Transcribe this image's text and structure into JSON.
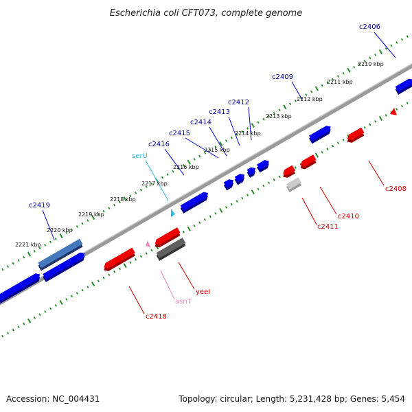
{
  "title": "Escherichia coli CFT073, complete genome",
  "footer": {
    "accession": "Accession: NC_004431",
    "topology": "Topology: circular; Length: 5,231,428 bp; Genes: 5,454"
  },
  "colors": {
    "forward_gene": "#0000ee",
    "reverse_gene": "#ee0000",
    "tick": "#228b22",
    "backbone": "#8a8a8a",
    "label_forward": "#0000aa",
    "label_reverse": "#cc0000",
    "trna": "#33bbee",
    "rna_pink": "#ee88bb",
    "pseudo": "#555555"
  },
  "scale_labels": [
    {
      "kbp": 2210,
      "text": "2210 kbp"
    },
    {
      "kbp": 2211,
      "text": "2211 kbp"
    },
    {
      "kbp": 2212,
      "text": "2212 kbp"
    },
    {
      "kbp": 2213,
      "text": "2213 kbp"
    },
    {
      "kbp": 2214,
      "text": "2214 kbp"
    },
    {
      "kbp": 2215,
      "text": "2215 kbp"
    },
    {
      "kbp": 2216,
      "text": "2216 kbp"
    },
    {
      "kbp": 2217,
      "text": "2217 kbp"
    },
    {
      "kbp": 2218,
      "text": "2218 kbp"
    },
    {
      "kbp": 2219,
      "text": "2219 kbp"
    },
    {
      "kbp": 2220,
      "text": "2220 kbp"
    },
    {
      "kbp": 2221,
      "text": "2221 kbp"
    }
  ],
  "gene_labels": [
    {
      "name": "c2406",
      "strand": "forward"
    },
    {
      "name": "c2409",
      "strand": "forward"
    },
    {
      "name": "c2412",
      "strand": "forward"
    },
    {
      "name": "c2413",
      "strand": "forward"
    },
    {
      "name": "c2414",
      "strand": "forward"
    },
    {
      "name": "c2415",
      "strand": "forward"
    },
    {
      "name": "c2416",
      "strand": "forward"
    },
    {
      "name": "serU",
      "strand": "trna"
    },
    {
      "name": "c2419",
      "strand": "forward"
    },
    {
      "name": "c2408",
      "strand": "reverse"
    },
    {
      "name": "c2410",
      "strand": "reverse"
    },
    {
      "name": "c2411",
      "strand": "reverse"
    },
    {
      "name": "yeeI",
      "strand": "reverse"
    },
    {
      "name": "asnT",
      "strand": "rna"
    },
    {
      "name": "c2418",
      "strand": "reverse"
    }
  ]
}
